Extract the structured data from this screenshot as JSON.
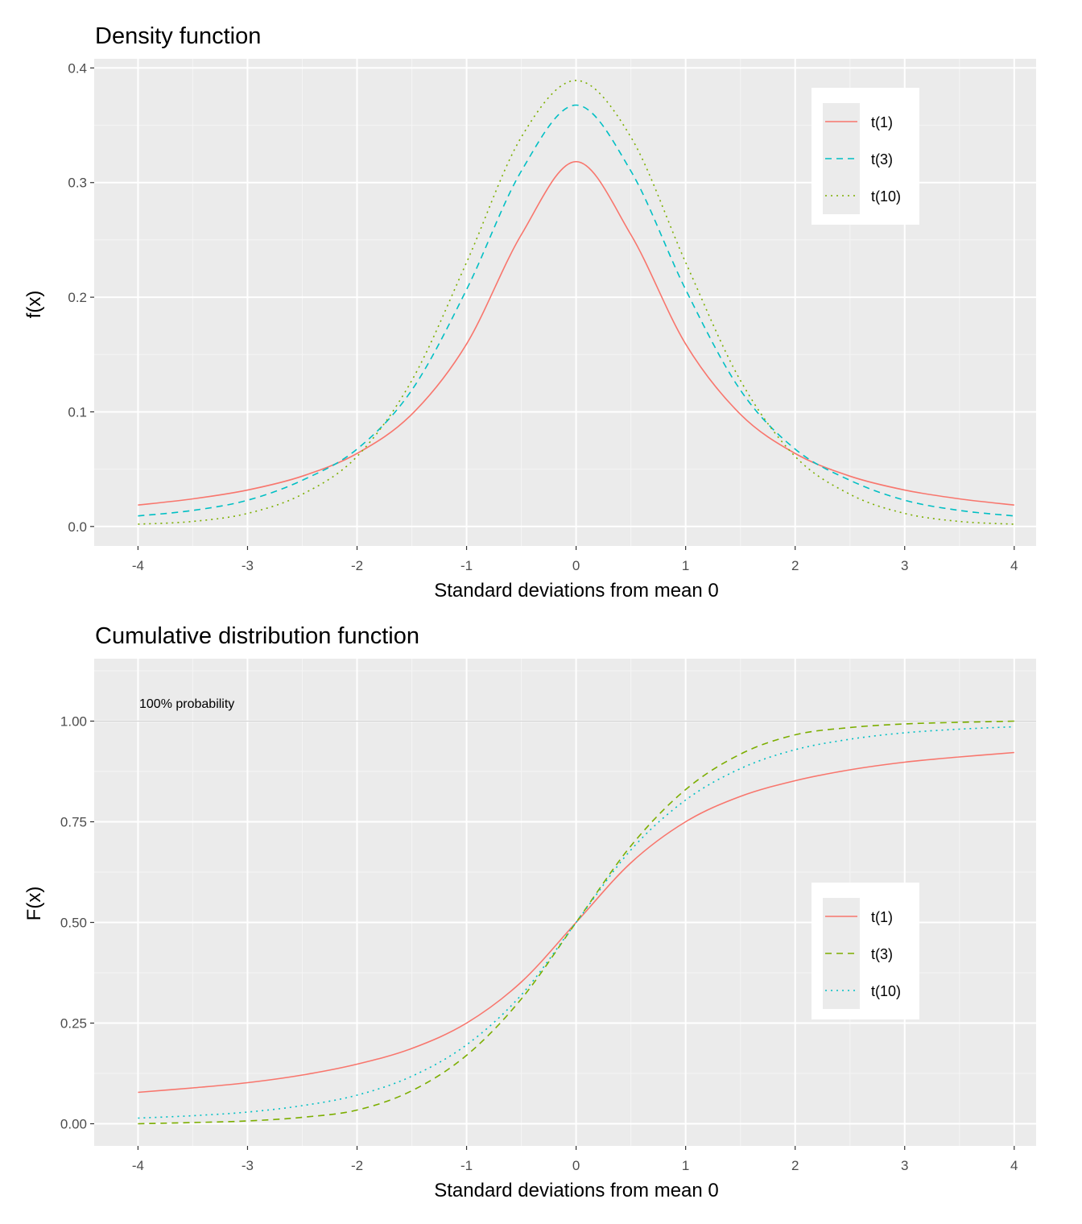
{
  "chart_data": [
    {
      "type": "line",
      "title": "Density function",
      "xlabel": "Standard deviations from mean 0",
      "ylabel": "f(x)",
      "xlim": [
        -4.4,
        4.2
      ],
      "ylim": [
        -0.017,
        0.408
      ],
      "x_ticks": [
        -4,
        -3,
        -2,
        -1,
        0,
        1,
        2,
        3,
        4
      ],
      "y_ticks": [
        0.0,
        0.1,
        0.2,
        0.3,
        0.4
      ],
      "y_tick_labels": [
        "0.0",
        "0.1",
        "0.2",
        "0.3",
        "0.4"
      ],
      "grid": true,
      "legend_position": "top-right",
      "x": [
        -4,
        -3.5,
        -3,
        -2.5,
        -2,
        -1.5,
        -1,
        -0.5,
        0,
        0.5,
        1,
        1.5,
        2,
        2.5,
        3,
        3.5,
        4
      ],
      "series": [
        {
          "name": "t(1)",
          "color": "#F8766D",
          "dash": "solid",
          "values": [
            0.0187,
            0.0241,
            0.0318,
            0.0439,
            0.0637,
            0.0979,
            0.1592,
            0.2546,
            0.3183,
            0.2546,
            0.1592,
            0.0979,
            0.0637,
            0.0439,
            0.0318,
            0.0241,
            0.0187
          ]
        },
        {
          "name": "t(3)",
          "color": "#00BFC4",
          "dash": "dashed",
          "values": [
            0.0092,
            0.014,
            0.0229,
            0.0403,
            0.0675,
            0.119,
            0.2067,
            0.3101,
            0.3676,
            0.3101,
            0.2067,
            0.119,
            0.0675,
            0.0403,
            0.0229,
            0.014,
            0.0092
          ]
        },
        {
          "name": "t(10)",
          "color": "#7CAE00",
          "dash": "dotted",
          "values": [
            0.002,
            0.0044,
            0.0114,
            0.0281,
            0.0611,
            0.1274,
            0.2304,
            0.3397,
            0.3891,
            0.3397,
            0.2304,
            0.1274,
            0.0611,
            0.0281,
            0.0114,
            0.0044,
            0.002
          ]
        }
      ]
    },
    {
      "type": "line",
      "title": "Cumulative distribution function",
      "xlabel": "Standard deviations from mean 0",
      "ylabel": "F(x)",
      "xlim": [
        -4.4,
        4.2
      ],
      "ylim": [
        -0.055,
        1.155
      ],
      "x_ticks": [
        -4,
        -3,
        -2,
        -1,
        0,
        1,
        2,
        3,
        4
      ],
      "y_ticks": [
        0.0,
        0.25,
        0.5,
        0.75,
        1.0
      ],
      "y_tick_labels": [
        "0.00",
        "0.25",
        "0.50",
        "0.75",
        "1.00"
      ],
      "grid": true,
      "legend_position": "right",
      "reference_line": {
        "y": 1.0,
        "label": "100% probability",
        "color": "#cccccc"
      },
      "x": [
        -4,
        -3.5,
        -3,
        -2.5,
        -2,
        -1.5,
        -1,
        -0.5,
        0,
        0.5,
        1,
        1.5,
        2,
        2.5,
        3,
        3.5,
        4
      ],
      "series": [
        {
          "name": "t(1)",
          "color": "#F8766D",
          "dash": "solid",
          "values": [
            0.078,
            0.089,
            0.102,
            0.121,
            0.148,
            0.187,
            0.25,
            0.352,
            0.5,
            0.648,
            0.75,
            0.813,
            0.852,
            0.879,
            0.898,
            0.911,
            0.922
          ]
        },
        {
          "name": "t(3)",
          "color": "#7CAE00",
          "dash": "dashed",
          "values": [
            0.0,
            0.003,
            0.007,
            0.016,
            0.034,
            0.082,
            0.17,
            0.31,
            0.5,
            0.69,
            0.83,
            0.918,
            0.966,
            0.984,
            0.993,
            0.997,
            1.0
          ]
        },
        {
          "name": "t(10)",
          "color": "#00BFC4",
          "dash": "dotted",
          "values": [
            0.014,
            0.02,
            0.029,
            0.045,
            0.071,
            0.118,
            0.196,
            0.32,
            0.5,
            0.68,
            0.804,
            0.882,
            0.929,
            0.955,
            0.971,
            0.98,
            0.986
          ]
        }
      ]
    }
  ]
}
